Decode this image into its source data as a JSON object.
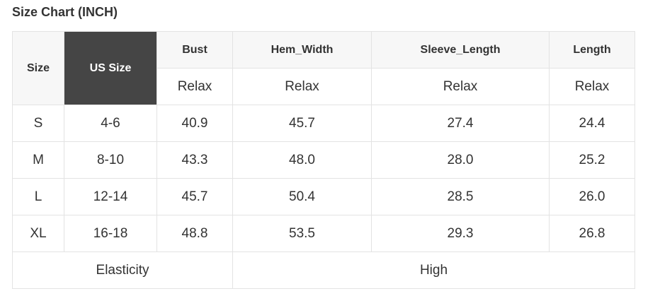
{
  "title": "Size Chart (INCH)",
  "headers": {
    "size": "Size",
    "us_size": "US Size",
    "cols": [
      "Bust",
      "Hem_Width",
      "Sleeve_Length",
      "Length"
    ],
    "sub": [
      "Relax",
      "Relax",
      "Relax",
      "Relax"
    ]
  },
  "rows": [
    {
      "size": "S",
      "us": "4-6",
      "vals": [
        "40.9",
        "45.7",
        "27.4",
        "24.4"
      ]
    },
    {
      "size": "M",
      "us": "8-10",
      "vals": [
        "43.3",
        "48.0",
        "28.0",
        "25.2"
      ]
    },
    {
      "size": "L",
      "us": "12-14",
      "vals": [
        "45.7",
        "50.4",
        "28.5",
        "26.0"
      ]
    },
    {
      "size": "XL",
      "us": "16-18",
      "vals": [
        "48.8",
        "53.5",
        "29.3",
        "26.8"
      ]
    }
  ],
  "elasticity": {
    "label": "Elasticity",
    "value": "High"
  },
  "colors": {
    "header_bg": "#f7f7f7",
    "highlight_bg": "#454545",
    "border": "#e3e3e3"
  }
}
